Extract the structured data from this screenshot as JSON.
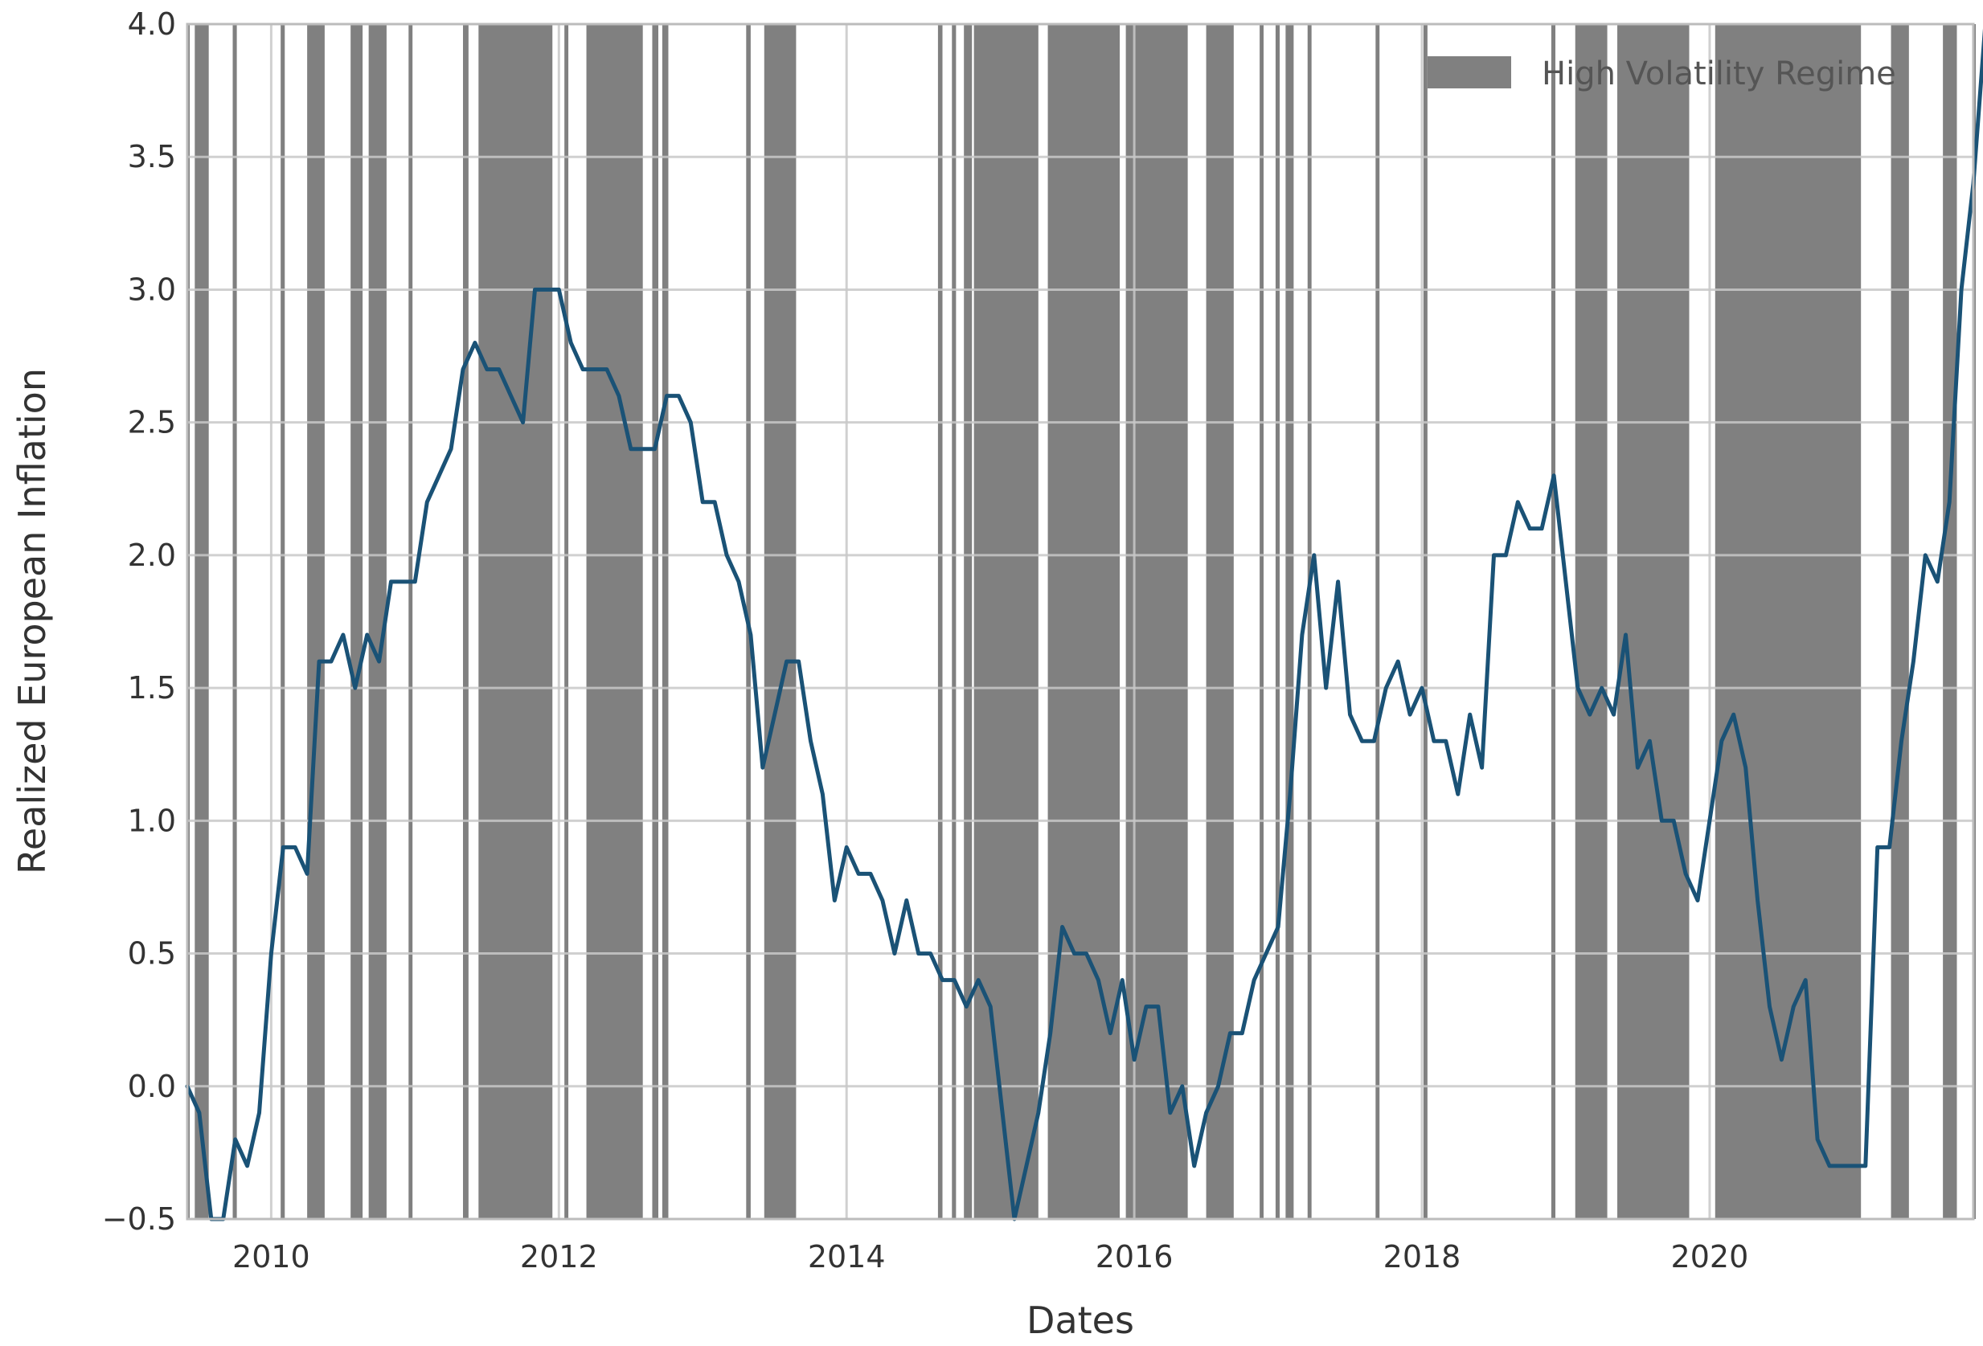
{
  "chart_data": {
    "type": "line",
    "xlabel": "Dates",
    "ylabel": "Realized European Inflation",
    "xlim": [
      "2009-06",
      "2021-11"
    ],
    "ylim": [
      -0.5,
      4.0
    ],
    "yticks": [
      -0.5,
      0.0,
      0.5,
      1.0,
      1.5,
      2.0,
      2.5,
      3.0,
      3.5,
      4.0
    ],
    "ytick_labels": [
      "−0.5",
      "0.0",
      "0.5",
      "1.0",
      "1.5",
      "2.0",
      "2.5",
      "3.0",
      "3.5",
      "4.0"
    ],
    "xticks": [
      "2010",
      "2012",
      "2014",
      "2016",
      "2018",
      "2020"
    ],
    "grid": true,
    "legend": {
      "placement": "top-right",
      "entries": [
        {
          "label": "High Volatility Regime",
          "color": "#808080"
        }
      ]
    },
    "series": [
      {
        "color": "#1a5276",
        "points": [
          [
            "2009-06",
            0.0
          ],
          [
            "2009-07",
            -0.1
          ],
          [
            "2009-08",
            -0.5
          ],
          [
            "2009-09",
            -0.5
          ],
          [
            "2009-10",
            -0.2
          ],
          [
            "2009-11",
            -0.3
          ],
          [
            "2009-12",
            -0.1
          ],
          [
            "2010-01",
            0.5
          ],
          [
            "2010-02",
            0.9
          ],
          [
            "2010-03",
            0.9
          ],
          [
            "2010-04",
            0.8
          ],
          [
            "2010-05",
            1.6
          ],
          [
            "2010-06",
            1.6
          ],
          [
            "2010-07",
            1.7
          ],
          [
            "2010-08",
            1.5
          ],
          [
            "2010-09",
            1.7
          ],
          [
            "2010-10",
            1.6
          ],
          [
            "2010-11",
            1.9
          ],
          [
            "2010-12",
            1.9
          ],
          [
            "2011-01",
            1.9
          ],
          [
            "2011-02",
            2.2
          ],
          [
            "2011-03",
            2.3
          ],
          [
            "2011-04",
            2.4
          ],
          [
            "2011-05",
            2.7
          ],
          [
            "2011-06",
            2.8
          ],
          [
            "2011-07",
            2.7
          ],
          [
            "2011-08",
            2.7
          ],
          [
            "2011-09",
            2.6
          ],
          [
            "2011-10",
            2.5
          ],
          [
            "2011-11",
            3.0
          ],
          [
            "2011-12",
            3.0
          ],
          [
            "2012-01",
            3.0
          ],
          [
            "2012-02",
            2.8
          ],
          [
            "2012-03",
            2.7
          ],
          [
            "2012-04",
            2.7
          ],
          [
            "2012-05",
            2.7
          ],
          [
            "2012-06",
            2.6
          ],
          [
            "2012-07",
            2.4
          ],
          [
            "2012-08",
            2.4
          ],
          [
            "2012-09",
            2.4
          ],
          [
            "2012-10",
            2.6
          ],
          [
            "2012-11",
            2.6
          ],
          [
            "2012-12",
            2.5
          ],
          [
            "2013-01",
            2.2
          ],
          [
            "2013-02",
            2.2
          ],
          [
            "2013-03",
            2.0
          ],
          [
            "2013-04",
            1.9
          ],
          [
            "2013-05",
            1.7
          ],
          [
            "2013-06",
            1.2
          ],
          [
            "2013-07",
            1.4
          ],
          [
            "2013-08",
            1.6
          ],
          [
            "2013-09",
            1.6
          ],
          [
            "2013-10",
            1.3
          ],
          [
            "2013-11",
            1.1
          ],
          [
            "2013-12",
            0.7
          ],
          [
            "2014-01",
            0.9
          ],
          [
            "2014-02",
            0.8
          ],
          [
            "2014-03",
            0.8
          ],
          [
            "2014-04",
            0.7
          ],
          [
            "2014-05",
            0.5
          ],
          [
            "2014-06",
            0.7
          ],
          [
            "2014-07",
            0.5
          ],
          [
            "2014-08",
            0.5
          ],
          [
            "2014-09",
            0.4
          ],
          [
            "2014-10",
            0.4
          ],
          [
            "2014-11",
            0.3
          ],
          [
            "2014-12",
            0.4
          ],
          [
            "2015-01",
            0.3
          ],
          [
            "2015-02",
            -0.1
          ],
          [
            "2015-03",
            -0.5
          ],
          [
            "2015-04",
            -0.3
          ],
          [
            "2015-05",
            -0.1
          ],
          [
            "2015-06",
            0.2
          ],
          [
            "2015-07",
            0.6
          ],
          [
            "2015-08",
            0.5
          ],
          [
            "2015-09",
            0.5
          ],
          [
            "2015-10",
            0.4
          ],
          [
            "2015-11",
            0.2
          ],
          [
            "2015-12",
            0.4
          ],
          [
            "2016-01",
            0.1
          ],
          [
            "2016-02",
            0.3
          ],
          [
            "2016-03",
            0.3
          ],
          [
            "2016-04",
            -0.1
          ],
          [
            "2016-05",
            0.0
          ],
          [
            "2016-06",
            -0.3
          ],
          [
            "2016-07",
            -0.1
          ],
          [
            "2016-08",
            0.0
          ],
          [
            "2016-09",
            0.2
          ],
          [
            "2016-10",
            0.2
          ],
          [
            "2016-11",
            0.4
          ],
          [
            "2016-12",
            0.5
          ],
          [
            "2017-01",
            0.6
          ],
          [
            "2017-02",
            1.1
          ],
          [
            "2017-03",
            1.7
          ],
          [
            "2017-04",
            2.0
          ],
          [
            "2017-05",
            1.5
          ],
          [
            "2017-06",
            1.9
          ],
          [
            "2017-07",
            1.4
          ],
          [
            "2017-08",
            1.3
          ],
          [
            "2017-09",
            1.3
          ],
          [
            "2017-10",
            1.5
          ],
          [
            "2017-11",
            1.6
          ],
          [
            "2017-12",
            1.4
          ],
          [
            "2018-01",
            1.5
          ],
          [
            "2018-02",
            1.3
          ],
          [
            "2018-03",
            1.3
          ],
          [
            "2018-04",
            1.1
          ],
          [
            "2018-05",
            1.4
          ],
          [
            "2018-06",
            1.2
          ],
          [
            "2018-07",
            2.0
          ],
          [
            "2018-08",
            2.0
          ],
          [
            "2018-09",
            2.2
          ],
          [
            "2018-10",
            2.1
          ],
          [
            "2018-11",
            2.1
          ],
          [
            "2018-12",
            2.3
          ],
          [
            "2019-01",
            1.9
          ],
          [
            "2019-02",
            1.5
          ],
          [
            "2019-03",
            1.4
          ],
          [
            "2019-04",
            1.5
          ],
          [
            "2019-05",
            1.4
          ],
          [
            "2019-06",
            1.7
          ],
          [
            "2019-07",
            1.2
          ],
          [
            "2019-08",
            1.3
          ],
          [
            "2019-09",
            1.0
          ],
          [
            "2019-10",
            1.0
          ],
          [
            "2019-11",
            0.8
          ],
          [
            "2019-12",
            0.7
          ],
          [
            "2020-01",
            1.0
          ],
          [
            "2020-02",
            1.3
          ],
          [
            "2020-03",
            1.4
          ],
          [
            "2020-04",
            1.2
          ],
          [
            "2020-05",
            0.7
          ],
          [
            "2020-06",
            0.3
          ],
          [
            "2020-07",
            0.1
          ],
          [
            "2020-08",
            0.3
          ],
          [
            "2020-09",
            0.4
          ],
          [
            "2020-10",
            -0.2
          ],
          [
            "2020-11",
            -0.3
          ],
          [
            "2020-12",
            -0.3
          ],
          [
            "2021-01",
            -0.3
          ],
          [
            "2021-02",
            -0.3
          ],
          [
            "2021-03",
            0.9
          ],
          [
            "2021-04",
            0.9
          ],
          [
            "2021-05",
            1.3
          ],
          [
            "2021-06",
            1.6
          ],
          [
            "2021-07",
            2.0
          ],
          [
            "2021-08",
            1.9
          ],
          [
            "2021-09",
            2.2
          ],
          [
            "2021-10",
            3.0
          ],
          [
            "2021-11",
            3.4
          ],
          [
            "2021-12",
            4.0
          ]
        ]
      }
    ],
    "regime_bands": [
      [
        "2009-06-01",
        "2009-06-05"
      ],
      [
        "2009-06-20",
        "2009-07-25"
      ],
      [
        "2009-09-25",
        "2009-10-05"
      ],
      [
        "2010-01-25",
        "2010-02-05"
      ],
      [
        "2010-04-01",
        "2010-05-15"
      ],
      [
        "2010-07-20",
        "2010-08-20"
      ],
      [
        "2010-09-05",
        "2010-10-20"
      ],
      [
        "2010-12-15",
        "2010-12-25"
      ],
      [
        "2011-05-01",
        "2011-05-15"
      ],
      [
        "2011-06-10",
        "2011-12-15"
      ],
      [
        "2012-01-15",
        "2012-01-25"
      ],
      [
        "2012-03-10",
        "2012-08-01"
      ],
      [
        "2012-08-25",
        "2012-09-10"
      ],
      [
        "2012-09-20",
        "2012-10-05"
      ],
      [
        "2013-04-20",
        "2013-05-01"
      ],
      [
        "2013-06-05",
        "2013-08-25"
      ],
      [
        "2014-08-20",
        "2014-09-01"
      ],
      [
        "2014-09-25",
        "2014-10-05"
      ],
      [
        "2014-10-25",
        "2014-11-15"
      ],
      [
        "2014-11-20",
        "2015-05-01"
      ],
      [
        "2015-05-25",
        "2015-11-25"
      ],
      [
        "2015-12-10",
        "2016-05-15"
      ],
      [
        "2016-07-01",
        "2016-09-10"
      ],
      [
        "2016-11-15",
        "2016-11-25"
      ],
      [
        "2016-12-25",
        "2017-01-05"
      ],
      [
        "2017-01-20",
        "2017-02-10"
      ],
      [
        "2017-03-15",
        "2017-03-25"
      ],
      [
        "2017-09-05",
        "2017-09-15"
      ],
      [
        "2018-01-05",
        "2018-01-15"
      ],
      [
        "2018-11-25",
        "2018-12-05"
      ],
      [
        "2019-01-25",
        "2019-04-15"
      ],
      [
        "2019-05-10",
        "2019-11-10"
      ],
      [
        "2020-01-15",
        "2021-01-20"
      ],
      [
        "2021-04-05",
        "2021-05-20"
      ],
      [
        "2021-08-15",
        "2021-09-20"
      ],
      [
        "2021-11-20",
        "2021-12-31"
      ]
    ]
  }
}
